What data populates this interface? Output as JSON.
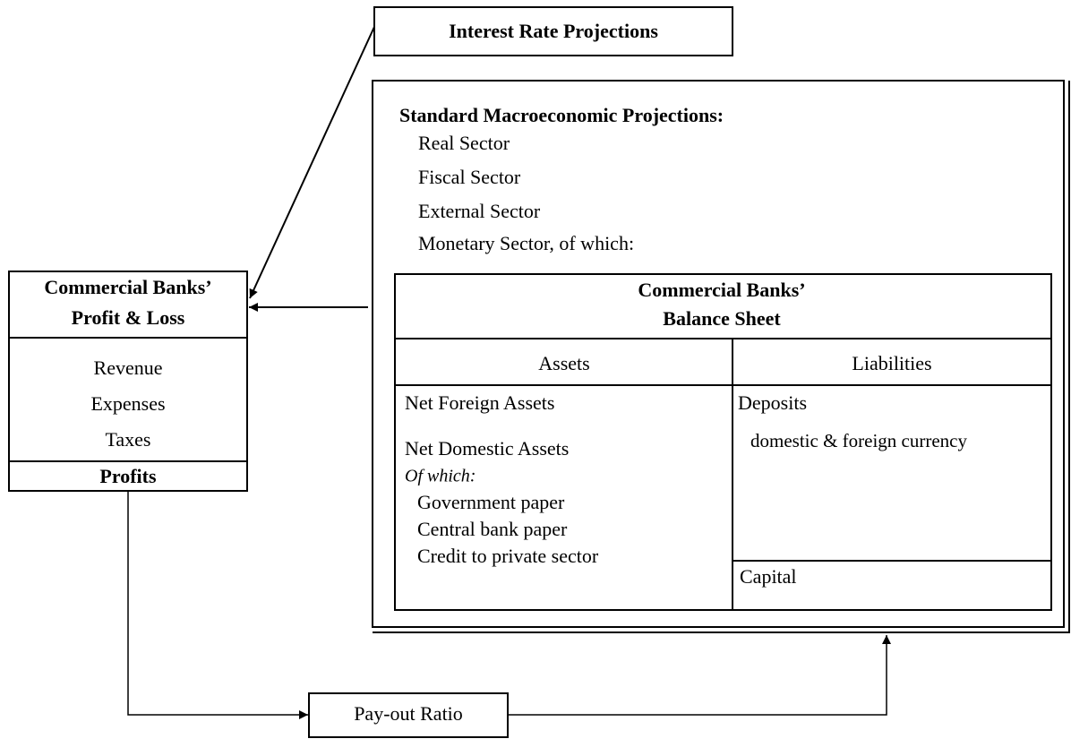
{
  "interest_rate": {
    "label": "Interest Rate Projections"
  },
  "macro": {
    "title": "Standard Macroeconomic Projections:",
    "items": [
      "Real Sector",
      "Fiscal Sector",
      "External Sector",
      "Monetary Sector, of which:"
    ]
  },
  "balance_sheet": {
    "title": [
      "Commercial Banks’",
      "Balance Sheet"
    ],
    "assets": {
      "header": "Assets",
      "net_foreign": "Net Foreign Assets",
      "net_domestic": "Net Domestic Assets",
      "of_which": "Of which:",
      "items": [
        "Government paper",
        "Central bank paper",
        "Credit to private sector"
      ]
    },
    "liabilities": {
      "header": "Liabilities",
      "deposits": "Deposits",
      "deposits_note": "domestic & foreign currency",
      "capital": "Capital"
    }
  },
  "profit_loss": {
    "title": [
      "Commercial Banks’",
      "Profit & Loss"
    ],
    "items": [
      "Revenue",
      "Expenses",
      "Taxes"
    ],
    "total": "Profits"
  },
  "payout": {
    "label": "Pay-out Ratio"
  }
}
